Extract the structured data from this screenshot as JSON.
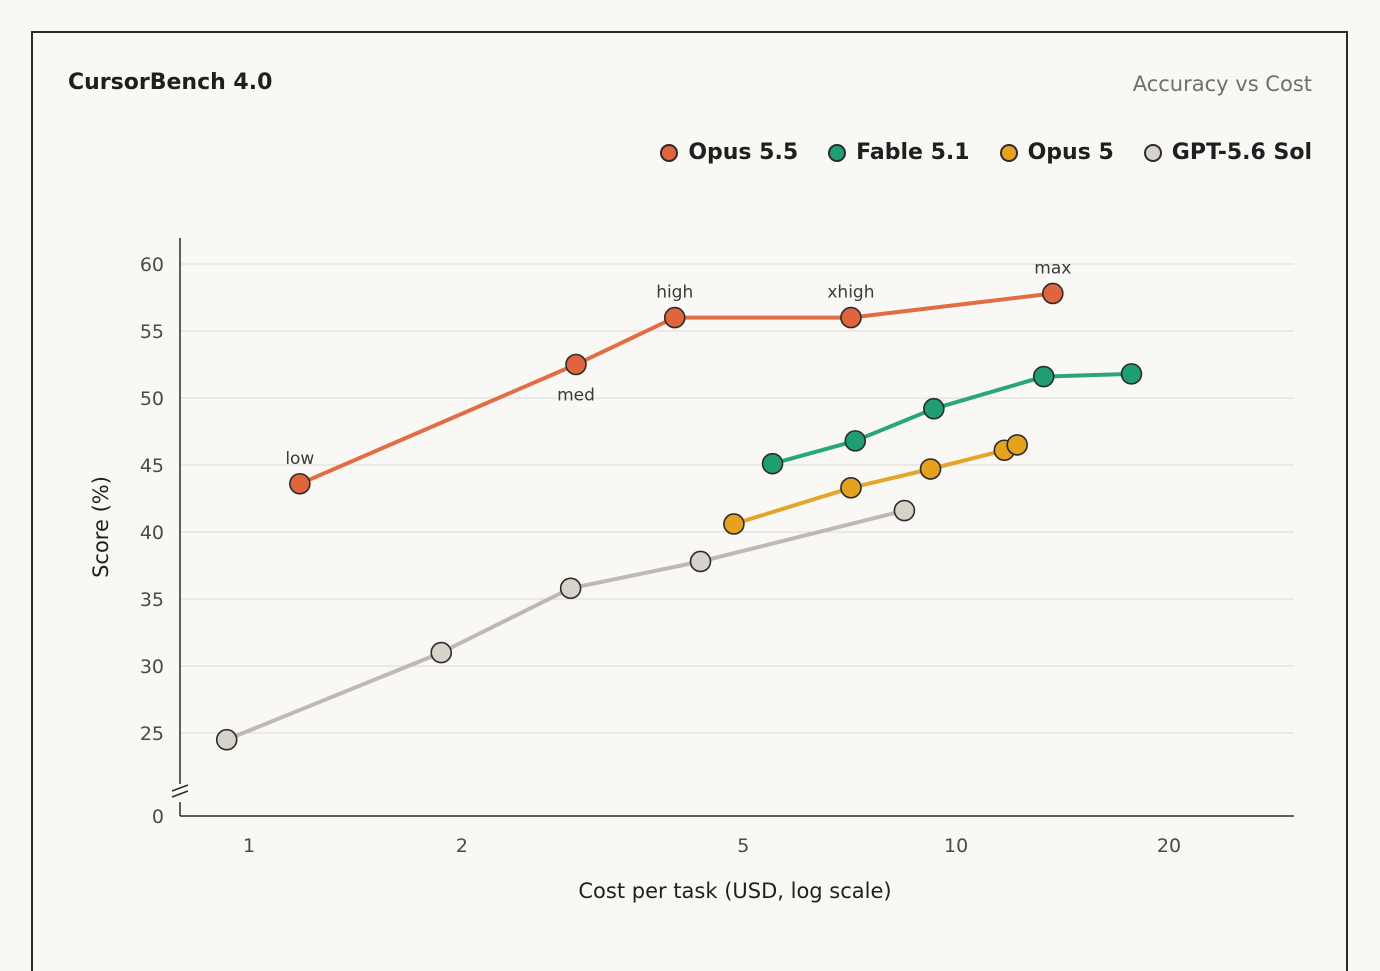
{
  "header": {
    "title": "CursorBench 4.0",
    "subtitle": "Accuracy vs Cost"
  },
  "chart_data": {
    "type": "line",
    "title": "CursorBench 4.0",
    "subtitle": "Accuracy vs Cost",
    "xlabel": "Cost per task (USD, log scale)",
    "ylabel": "Score (%)",
    "x_scale": "log",
    "xlim": [
      0.8,
      26
    ],
    "ylim": [
      25,
      60
    ],
    "y_axis_break": true,
    "x_ticks": [
      1,
      2,
      5,
      10,
      20
    ],
    "y_ticks": [
      0,
      25,
      30,
      35,
      40,
      45,
      50,
      55,
      60
    ],
    "grid": "horizontal",
    "legend_position": "top-right",
    "series": [
      {
        "name": "Opus 5.5",
        "color": "#e0643c",
        "line_color": "#e06e45",
        "points": [
          {
            "x": 1.18,
            "y": 43.6,
            "label": "low",
            "label_pos": "above"
          },
          {
            "x": 2.9,
            "y": 52.5,
            "label": "med",
            "label_pos": "below"
          },
          {
            "x": 4.0,
            "y": 56.0,
            "label": "high",
            "label_pos": "above"
          },
          {
            "x": 7.1,
            "y": 56.0,
            "label": "xhigh",
            "label_pos": "above"
          },
          {
            "x": 13.7,
            "y": 57.8,
            "label": "max",
            "label_pos": "above"
          }
        ]
      },
      {
        "name": "Fable 5.1",
        "color": "#1f9e72",
        "line_color": "#2aa77a",
        "points": [
          {
            "x": 5.5,
            "y": 45.1
          },
          {
            "x": 7.2,
            "y": 46.8
          },
          {
            "x": 9.3,
            "y": 49.2
          },
          {
            "x": 13.3,
            "y": 51.6
          },
          {
            "x": 17.7,
            "y": 51.8
          }
        ]
      },
      {
        "name": "Opus 5",
        "color": "#e5a21f",
        "line_color": "#e3a52a",
        "points": [
          {
            "x": 4.85,
            "y": 40.6
          },
          {
            "x": 7.1,
            "y": 43.3
          },
          {
            "x": 9.2,
            "y": 44.7
          },
          {
            "x": 11.7,
            "y": 46.1
          },
          {
            "x": 12.2,
            "y": 46.5
          }
        ]
      },
      {
        "name": "GPT-5.6 Sol",
        "color": "#d6d3cb",
        "line_color": "#bdbab2",
        "points": [
          {
            "x": 0.93,
            "y": 24.5
          },
          {
            "x": 1.87,
            "y": 31.0
          },
          {
            "x": 2.85,
            "y": 35.8
          },
          {
            "x": 4.35,
            "y": 37.8
          },
          {
            "x": 8.45,
            "y": 41.6
          }
        ]
      }
    ]
  }
}
